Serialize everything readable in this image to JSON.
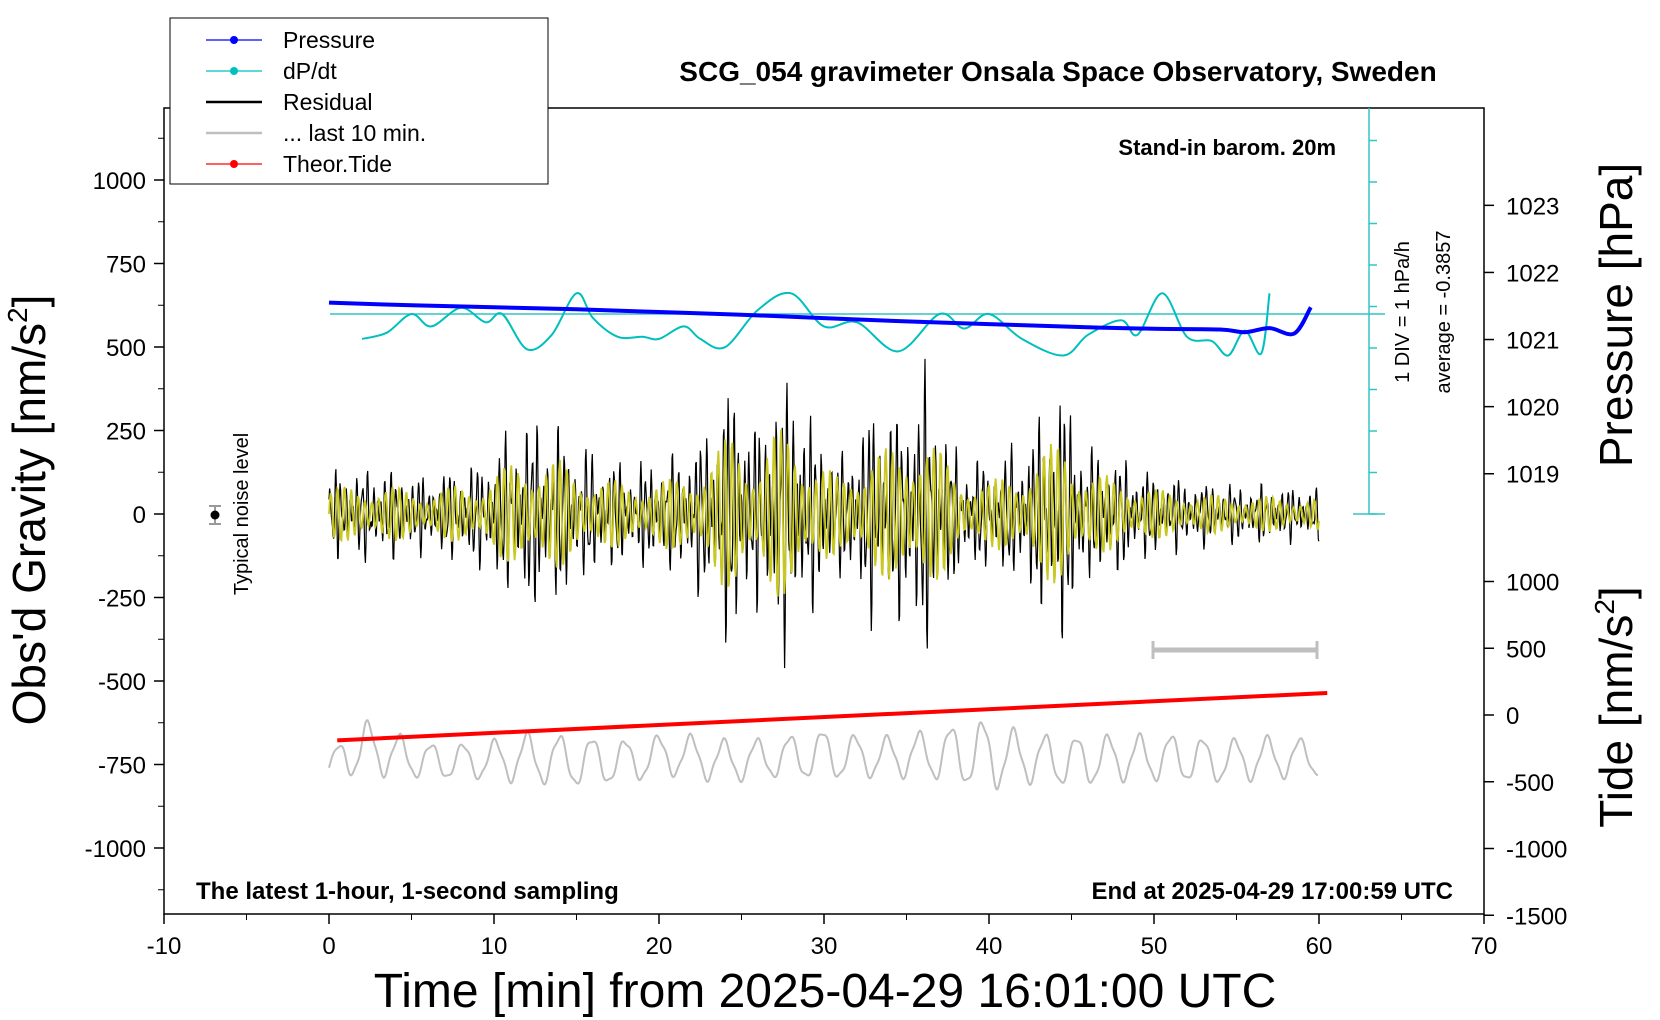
{
  "chart_data": {
    "type": "line",
    "title": "SCG_054 gravimeter Onsala Space Observatory, Sweden",
    "xlabel": "Time [min] from 2025-04-29 16:01:00 UTC",
    "ylabel_left": "Obs'd Gravity [nm/s",
    "ylabel_left_sup": "2",
    "ylabel_left_end": "]",
    "ylabel_right_top": "Pressure [hPa]",
    "ylabel_right_bottom": "Tide [nm/s",
    "ylabel_right_bottom_sup": "2",
    "ylabel_right_bottom_end": "]",
    "xlim": [
      -10,
      70
    ],
    "ylim_gravity": [
      -1200,
      1200
    ],
    "x_ticks": [
      "-10",
      "0",
      "10",
      "20",
      "30",
      "40",
      "50",
      "60",
      "70"
    ],
    "y_ticks_gravity": [
      "-1000",
      "-750",
      "-500",
      "-250",
      "0",
      "250",
      "500",
      "750",
      "1000"
    ],
    "pressure_ticks": [
      "1019",
      "1020",
      "1021",
      "1022",
      "1023"
    ],
    "tide_ticks": [
      "-1500",
      "-1000",
      "-500",
      "0",
      "500",
      "1000"
    ],
    "legend": {
      "position": "top-left",
      "entries": [
        {
          "label": "Pressure",
          "color": "#0000ff",
          "marker": "dot"
        },
        {
          "label": "dP/dt",
          "color": "#00bfbf",
          "marker": "dot"
        },
        {
          "label": "Residual",
          "color": "#000000",
          "marker": "line"
        },
        {
          "label": "... last 10 min.",
          "color": "#bfbfbf",
          "marker": "line"
        },
        {
          "label": "Theor.Tide",
          "color": "#ff0000",
          "marker": "dot"
        }
      ]
    },
    "annotations": {
      "barometer": "Stand-in barom. 20m",
      "dpdt_scale": "1 DIV = 1 hPa/h",
      "dpdt_average": "average = -0.3857",
      "noise_label": "Typical noise level",
      "bottom_left": "The latest 1-hour, 1-second sampling",
      "bottom_right": "End at 2025-04-29 17:00:59 UTC"
    },
    "series": [
      {
        "name": "Pressure",
        "color": "#0000ff",
        "unit": "hPa",
        "x": [
          0,
          5,
          10,
          15,
          20,
          25,
          30,
          35,
          40,
          45,
          50,
          54,
          55.5,
          57,
          58.5,
          59.5
        ],
        "y": [
          1021.55,
          1021.51,
          1021.48,
          1021.45,
          1021.41,
          1021.37,
          1021.32,
          1021.27,
          1021.23,
          1021.19,
          1021.16,
          1021.15,
          1021.11,
          1021.17,
          1021.09,
          1021.48
        ]
      },
      {
        "name": "dP/dt",
        "color": "#00bfbf",
        "unit": "hPa/h",
        "x": [
          2,
          3.5,
          5,
          6.2,
          8,
          9.5,
          10.5,
          12,
          13.5,
          15,
          16,
          17.5,
          19,
          20,
          21.5,
          22.5,
          24,
          26,
          28,
          30,
          32,
          34.5,
          37,
          38.5,
          40,
          42,
          44.5,
          46,
          48,
          49,
          50.5,
          52,
          53.5,
          54.5,
          55.5,
          56.5,
          57
        ],
        "y": [
          -0.6,
          -0.45,
          0,
          -0.3,
          0.15,
          -0.2,
          0,
          -0.85,
          -0.5,
          0.5,
          -0.1,
          -0.55,
          -0.55,
          -0.6,
          -0.3,
          -0.6,
          -0.8,
          0.1,
          0.5,
          -0.3,
          -0.2,
          -0.9,
          0,
          -0.35,
          0,
          -0.6,
          -1.0,
          -0.5,
          -0.15,
          -0.5,
          0.5,
          -0.55,
          -0.65,
          -1.0,
          -0.4,
          -0.95,
          0.5
        ]
      },
      {
        "name": "Residual",
        "color": "#000000",
        "unit": "nm/s2",
        "x": [
          0,
          3,
          6,
          9,
          12,
          13.5,
          15,
          18,
          21,
          23,
          24.5,
          26,
          27,
          28,
          29,
          31,
          33,
          34.5,
          36,
          38,
          40,
          42,
          44.5,
          46,
          48,
          50,
          53,
          56,
          60
        ],
        "amplitude": [
          150,
          160,
          130,
          180,
          330,
          320,
          240,
          170,
          200,
          300,
          470,
          300,
          460,
          480,
          350,
          200,
          380,
          350,
          500,
          220,
          180,
          250,
          440,
          230,
          200,
          140,
          110,
          100,
          90
        ]
      },
      {
        "name": "... last 10 min.",
        "color": "#bfbfbf",
        "unit": "nm/s2",
        "x": [
          0,
          1,
          2,
          4,
          6,
          9,
          12,
          15,
          18,
          21,
          24,
          27,
          30,
          33,
          36,
          39,
          40,
          42,
          45,
          48,
          51,
          54,
          57,
          60
        ],
        "center": [
          -760,
          -720,
          -700,
          -720,
          -740,
          -740,
          -730,
          -740,
          -740,
          -720,
          -740,
          -730,
          -720,
          -730,
          -720,
          -720,
          -720,
          -730,
          -740,
          -730,
          -730,
          -740,
          -730,
          -730
        ],
        "amplitude": [
          30,
          60,
          80,
          60,
          50,
          50,
          70,
          70,
          60,
          60,
          60,
          55,
          70,
          55,
          65,
          90,
          100,
          70,
          70,
          65,
          65,
          60,
          60,
          50
        ]
      },
      {
        "name": "Theor.Tide",
        "color": "#ff0000",
        "unit": "nm/s2",
        "x": [
          0.5,
          60.5
        ],
        "y": [
          -190,
          165
        ]
      }
    ]
  }
}
